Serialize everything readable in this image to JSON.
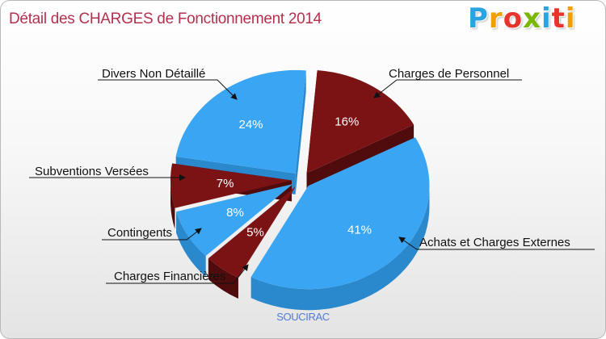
{
  "header": {
    "title": "Détail des CHARGES de Fonctionnement 2014",
    "logo_text": "Proxiti",
    "logo_colors": [
      "#2aa4e0",
      "#f0a000",
      "#e8342a",
      "#7ab800",
      "#2aa4e0",
      "#e8342a",
      "#f0a000"
    ]
  },
  "chart_data": {
    "type": "pie",
    "title": "Détail des CHARGES de Fonctionnement 2014",
    "subtitle": "SOUCIRAC",
    "style": "3d-exploded",
    "slices": [
      {
        "label": "Charges de Personnel",
        "value": 16,
        "pct_label": "16%",
        "color": "#7b1315"
      },
      {
        "label": "Achats et Charges Externes",
        "value": 41,
        "pct_label": "41%",
        "color": "#3aa6f3"
      },
      {
        "label": "Charges Financières",
        "value": 5,
        "pct_label": "5%",
        "color": "#7b1315"
      },
      {
        "label": "Contingents",
        "value": 8,
        "pct_label": "8%",
        "color": "#3aa6f3"
      },
      {
        "label": "Subventions Versées",
        "value": 7,
        "pct_label": "7%",
        "color": "#7b1315"
      },
      {
        "label": "Divers Non Détaillé",
        "value": 24,
        "pct_label": "24%",
        "color": "#3aa6f3"
      }
    ]
  }
}
